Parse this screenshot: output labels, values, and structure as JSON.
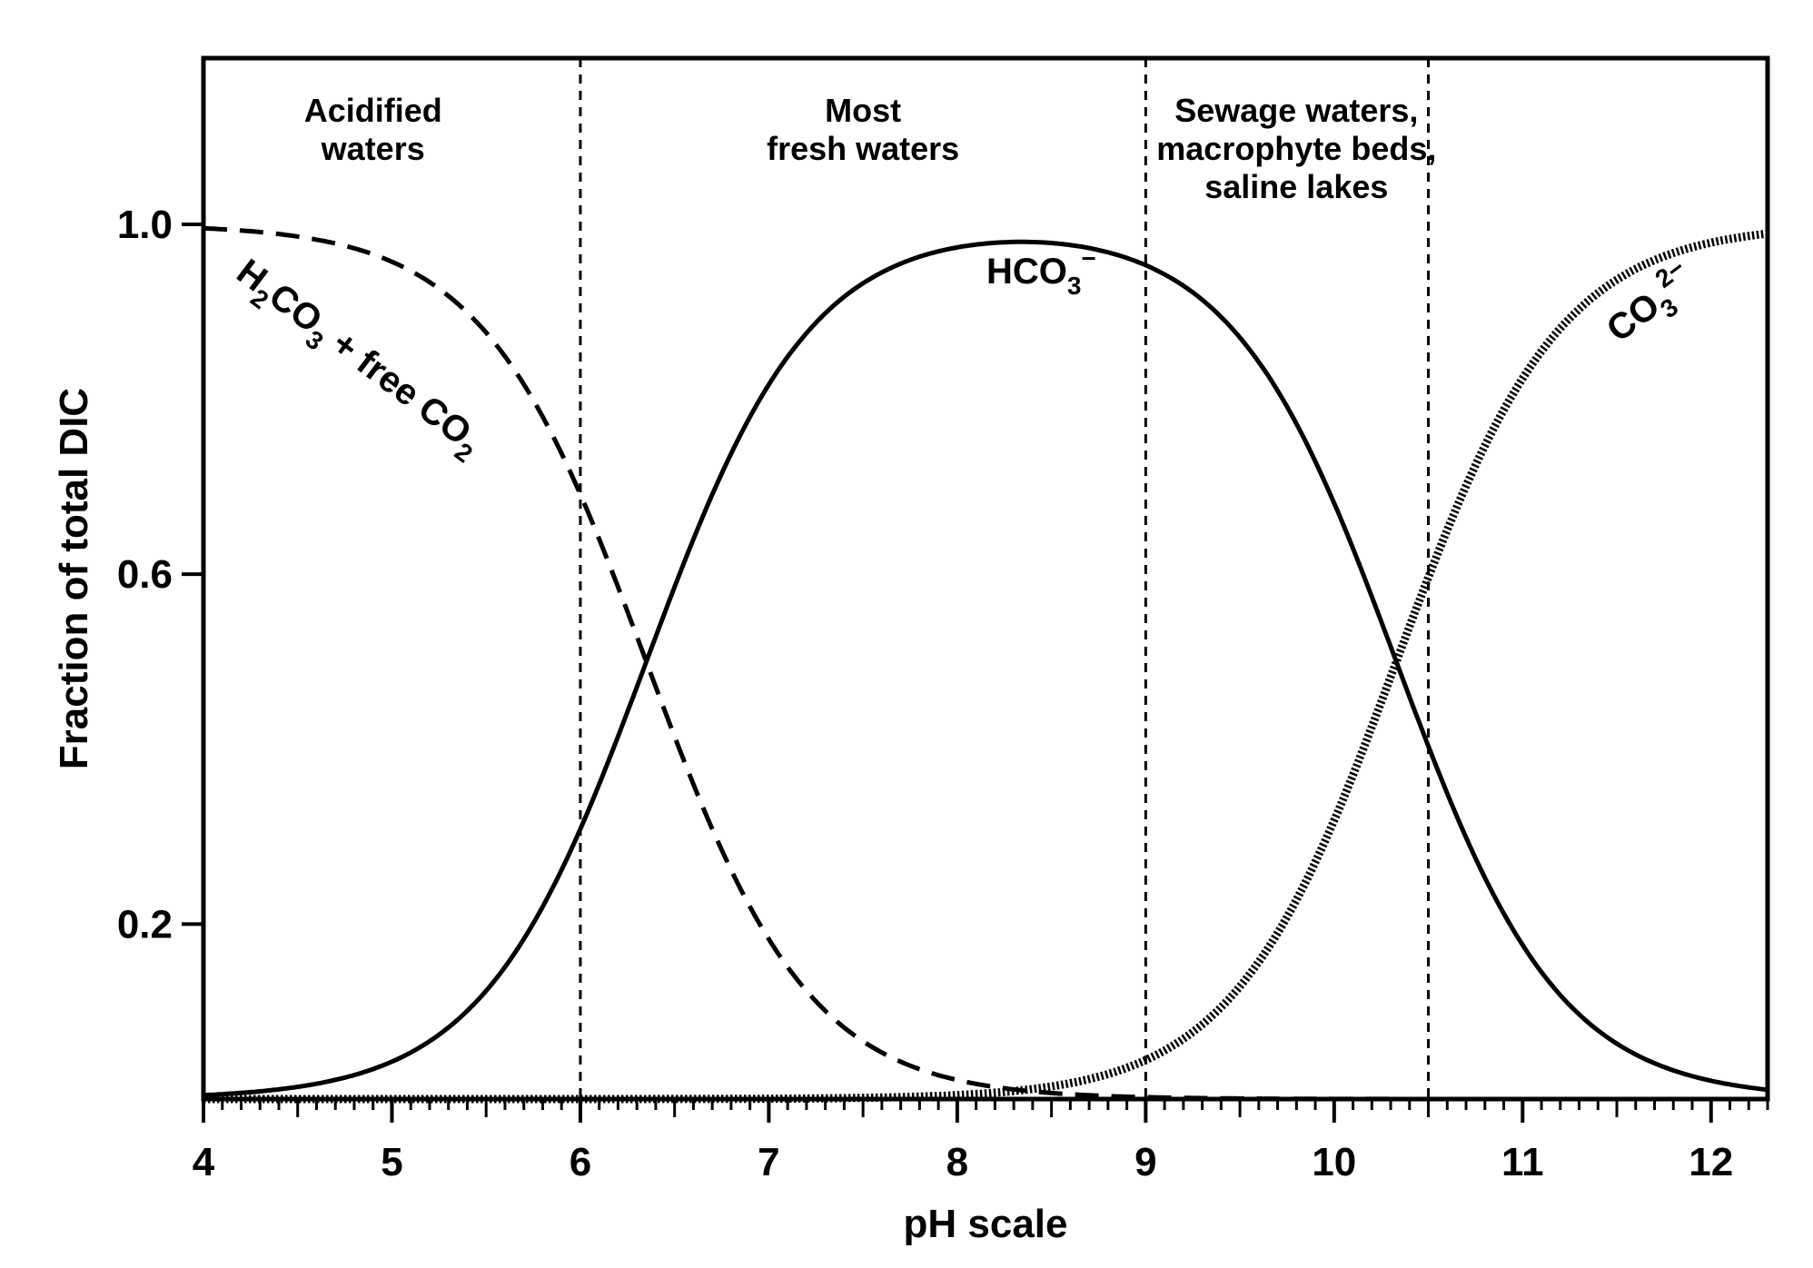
{
  "chart_data": {
    "type": "line",
    "xlabel": "pH scale",
    "ylabel": "Fraction of total DIC",
    "xlim": [
      4,
      12.3
    ],
    "ylim": [
      0,
      1.19
    ],
    "x_ticks": [
      4,
      5,
      6,
      7,
      8,
      9,
      10,
      11,
      12
    ],
    "x_tick_labels": [
      "4",
      "5",
      "6",
      "7",
      "8",
      "9",
      "10",
      "11",
      "12"
    ],
    "y_ticks": [
      0.2,
      0.6,
      1.0
    ],
    "y_tick_labels": [
      "0.2",
      "0.6",
      "1.0"
    ],
    "grid": false,
    "legend": "none",
    "dividers": [
      6,
      9,
      10.5
    ],
    "regions": [
      {
        "lines": [
          "Acidified",
          "waters"
        ],
        "x": 4.9
      },
      {
        "lines": [
          "Most",
          "fresh waters"
        ],
        "x": 7.5
      },
      {
        "lines": [
          "Sewage waters,",
          "macrophyte beds,",
          "saline lakes"
        ],
        "x": 9.8
      }
    ],
    "pK1": 6.35,
    "pK2": 10.33,
    "x": [
      4.0,
      4.5,
      5.0,
      5.5,
      6.0,
      6.4,
      7.0,
      7.5,
      8.0,
      8.5,
      9.0,
      9.5,
      10.0,
      10.4,
      10.5,
      11.0,
      11.5,
      12.0,
      12.3
    ],
    "series": [
      {
        "label_parts": [
          "H",
          "2",
          "CO",
          "3",
          " + free CO",
          "2"
        ],
        "style": "dashed",
        "values": [
          1.0,
          0.99,
          0.96,
          0.88,
          0.69,
          0.5,
          0.18,
          0.07,
          0.02,
          0.01,
          0.0,
          0.0,
          0.0,
          0.0,
          0.0,
          0.0,
          0.0,
          0.0,
          0.0
        ]
      },
      {
        "label_parts": [
          "HCO",
          "3",
          "−"
        ],
        "style": "solid",
        "values": [
          0.0,
          0.01,
          0.04,
          0.12,
          0.31,
          0.5,
          0.82,
          0.93,
          0.98,
          0.99,
          0.97,
          0.87,
          0.68,
          0.51,
          0.45,
          0.18,
          0.07,
          0.02,
          0.01
        ]
      },
      {
        "label_parts": [
          "CO",
          "3",
          "2−"
        ],
        "style": "dotted",
        "values": [
          0.0,
          0.0,
          0.0,
          0.0,
          0.0,
          0.0,
          0.0,
          0.0,
          0.0,
          0.01,
          0.03,
          0.13,
          0.32,
          0.49,
          0.55,
          0.82,
          0.93,
          0.98,
          0.99
        ]
      }
    ]
  }
}
